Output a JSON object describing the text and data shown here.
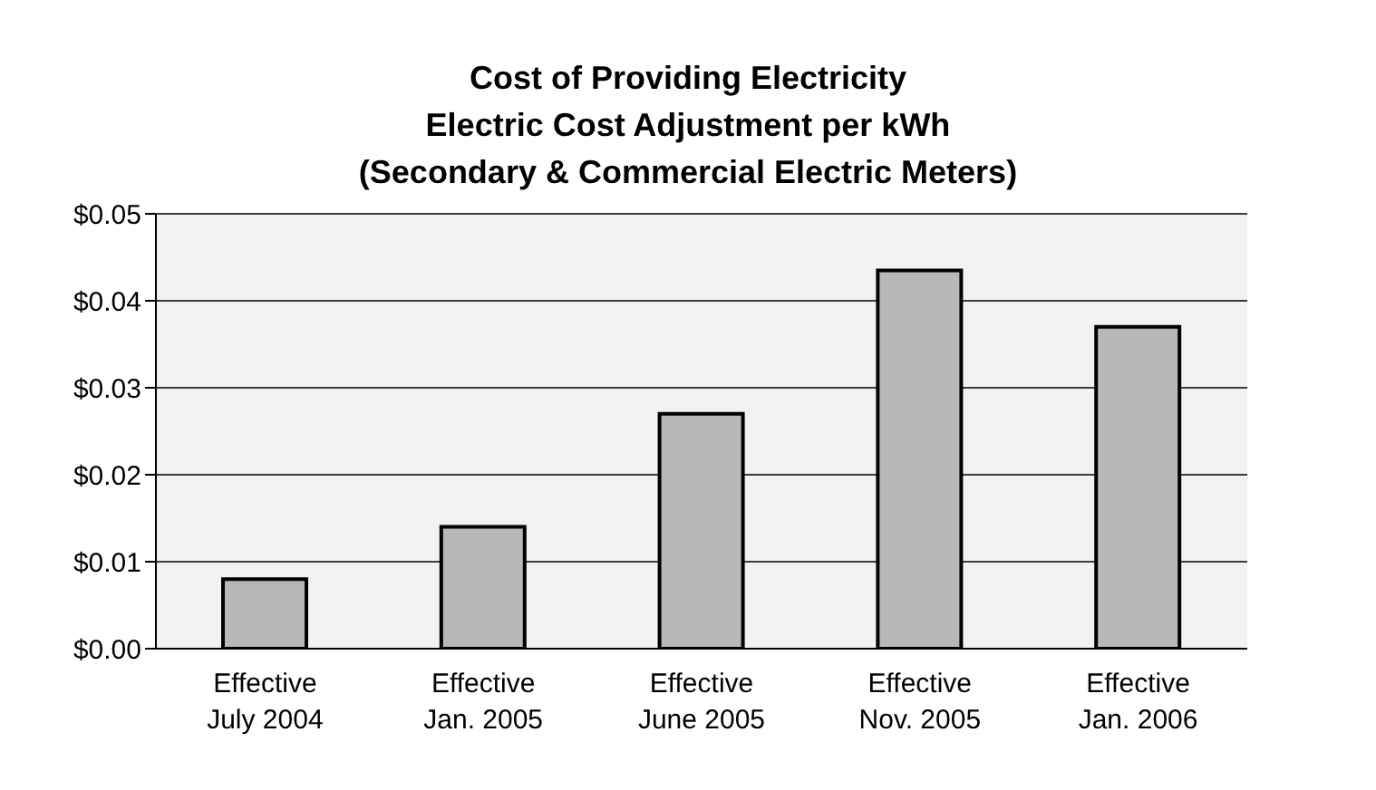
{
  "chart_data": {
    "type": "bar",
    "title": "Cost of Providing Electricity",
    "subtitle": "Electric Cost Adjustment per kWh\n(Secondary & Commercial Electric Meters)",
    "categories": [
      "Effective\nJuly 2004",
      "Effective\nJan. 2005",
      "Effective\nJune 2005",
      "Effective\nNov. 2005",
      "Effective\nJan. 2006"
    ],
    "values": [
      0.008,
      0.014,
      0.027,
      0.0435,
      0.037
    ],
    "color": "#b8b8b8",
    "ylim": [
      0,
      0.05
    ],
    "yticks": [
      {
        "value": 0,
        "label": "$0.00"
      },
      {
        "value": 0.01,
        "label": "$0.01"
      },
      {
        "value": 0.02,
        "label": "$0.02"
      },
      {
        "value": 0.03,
        "label": "$0.03"
      },
      {
        "value": 0.04,
        "label": "$0.04"
      },
      {
        "value": 0.05,
        "label": "$0.05"
      }
    ],
    "grid": "y",
    "legend": false
  }
}
